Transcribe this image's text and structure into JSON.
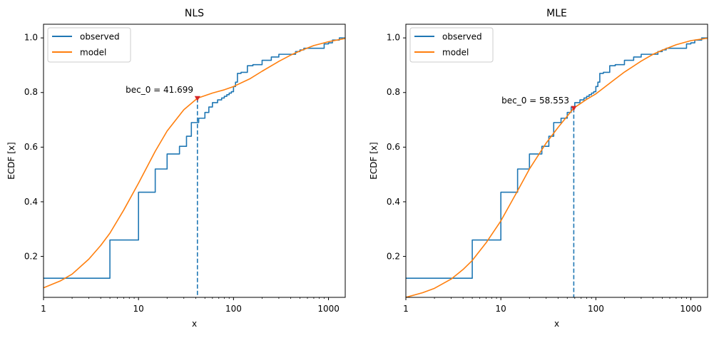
{
  "chart_data": [
    {
      "type": "line",
      "title": "NLS",
      "xlabel": "x",
      "ylabel": "ECDF [x]",
      "xscale": "log",
      "xlim": [
        1,
        1500
      ],
      "ylim": [
        0.05,
        1.05
      ],
      "xticks": [
        1,
        10,
        100,
        1000
      ],
      "xtick_labels": [
        "1",
        "10",
        "100",
        "1000"
      ],
      "yticks": [
        0.2,
        0.4,
        0.6,
        0.8,
        1.0
      ],
      "ytick_labels": [
        "0.2",
        "0.4",
        "0.6",
        "0.8",
        "1.0"
      ],
      "legend_position": "top-left",
      "series": [
        {
          "name": "observed",
          "kind": "step",
          "color": "#1f77b4",
          "x": [
            1,
            5,
            10,
            15,
            20,
            27,
            32,
            36,
            43,
            50,
            55,
            60,
            68,
            75,
            80,
            85,
            90,
            95,
            100,
            105,
            110,
            120,
            140,
            160,
            200,
            250,
            300,
            450,
            500,
            550,
            600,
            900,
            1000,
            1100,
            1300,
            1500
          ],
          "y": [
            0.12,
            0.26,
            0.435,
            0.52,
            0.575,
            0.603,
            0.64,
            0.69,
            0.706,
            0.727,
            0.747,
            0.763,
            0.773,
            0.78,
            0.786,
            0.792,
            0.798,
            0.803,
            0.822,
            0.838,
            0.87,
            0.874,
            0.898,
            0.902,
            0.918,
            0.93,
            0.94,
            0.95,
            0.956,
            0.962,
            0.962,
            0.978,
            0.982,
            0.992,
            1.0,
            1.0
          ]
        },
        {
          "name": "model",
          "kind": "line",
          "color": "#ff7f0e",
          "x": [
            1,
            1.5,
            2,
            3,
            4,
            5,
            7,
            10,
            15,
            20,
            30,
            41.7,
            60,
            80,
            100,
            150,
            200,
            300,
            400,
            500,
            700,
            1000,
            1500
          ],
          "y": [
            0.085,
            0.11,
            0.135,
            0.19,
            0.24,
            0.285,
            0.37,
            0.468,
            0.585,
            0.659,
            0.737,
            0.779,
            0.798,
            0.81,
            0.822,
            0.851,
            0.878,
            0.914,
            0.937,
            0.952,
            0.972,
            0.986,
            0.998
          ]
        }
      ],
      "annotation": {
        "text": "bec_0 = 41.699",
        "x": 41.699,
        "y": 0.779,
        "marker_color": "#d62728",
        "line_color": "#1f77b4"
      }
    },
    {
      "type": "line",
      "title": "MLE",
      "xlabel": "x",
      "ylabel": "ECDF [x]",
      "xscale": "log",
      "xlim": [
        1,
        1500
      ],
      "ylim": [
        0.05,
        1.05
      ],
      "xticks": [
        1,
        10,
        100,
        1000
      ],
      "xtick_labels": [
        "1",
        "10",
        "100",
        "1000"
      ],
      "yticks": [
        0.2,
        0.4,
        0.6,
        0.8,
        1.0
      ],
      "ytick_labels": [
        "0.2",
        "0.4",
        "0.6",
        "0.8",
        "1.0"
      ],
      "legend_position": "top-left",
      "series": [
        {
          "name": "observed",
          "kind": "step",
          "color": "#1f77b4",
          "x": [
            1,
            5,
            10,
            15,
            20,
            27,
            32,
            36,
            43,
            50,
            55,
            60,
            68,
            75,
            80,
            85,
            90,
            95,
            100,
            105,
            110,
            120,
            140,
            160,
            200,
            250,
            300,
            450,
            500,
            550,
            600,
            900,
            1000,
            1100,
            1300,
            1500
          ],
          "y": [
            0.12,
            0.26,
            0.435,
            0.52,
            0.575,
            0.603,
            0.64,
            0.69,
            0.706,
            0.727,
            0.747,
            0.763,
            0.773,
            0.78,
            0.786,
            0.792,
            0.798,
            0.803,
            0.822,
            0.838,
            0.87,
            0.874,
            0.898,
            0.902,
            0.918,
            0.93,
            0.94,
            0.95,
            0.956,
            0.962,
            0.962,
            0.978,
            0.982,
            0.992,
            1.0,
            1.0
          ]
        },
        {
          "name": "model",
          "kind": "line",
          "color": "#ff7f0e",
          "x": [
            1,
            1.5,
            2,
            3,
            4,
            5,
            7,
            10,
            15,
            20,
            30,
            40,
            58.553,
            80,
            100,
            150,
            200,
            300,
            400,
            500,
            700,
            1000,
            1500
          ],
          "y": [
            0.05,
            0.067,
            0.083,
            0.117,
            0.152,
            0.185,
            0.25,
            0.33,
            0.44,
            0.52,
            0.615,
            0.672,
            0.743,
            0.775,
            0.795,
            0.842,
            0.875,
            0.915,
            0.94,
            0.955,
            0.975,
            0.99,
            0.999
          ]
        }
      ],
      "annotation": {
        "text": "bec_0 = 58.553",
        "x": 58.553,
        "y": 0.743,
        "marker_color": "#d62728",
        "line_color": "#1f77b4"
      }
    }
  ]
}
